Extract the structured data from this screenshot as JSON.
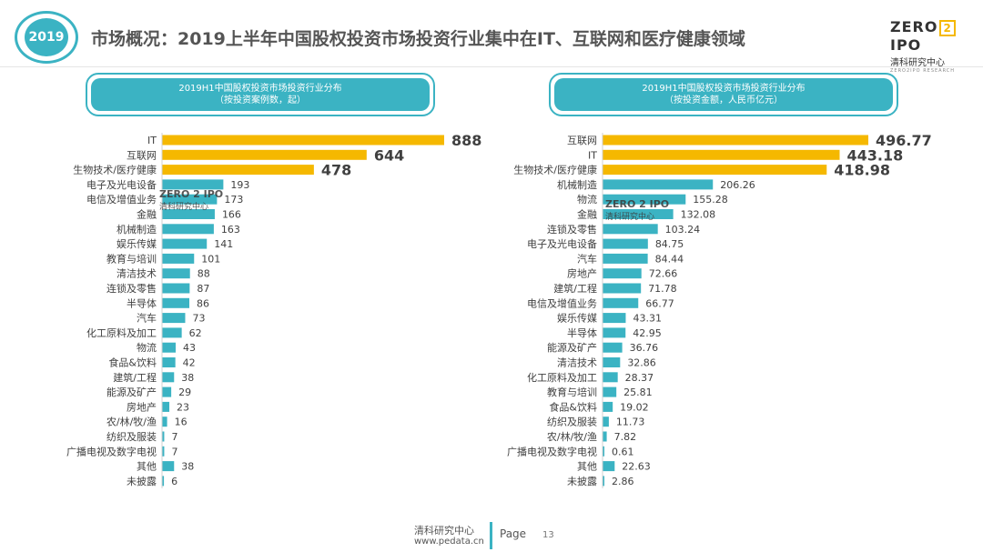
{
  "header": {
    "year_badge": "2019",
    "title": "市场概况：2019上半年中国股权投资市场投资行业集中在IT、互联网和医疗健康领域",
    "logo_left": "ZERO",
    "logo_mid": "2",
    "logo_right": "IPO",
    "logo_cn": "清科研究中心",
    "logo_en": "ZERO2IPO RESEARCH"
  },
  "watermarks": [
    {
      "main": "ZERO 2 IPO",
      "cn": "清科研究中心"
    },
    {
      "main": "ZERO 2 IPO",
      "cn": "清科研究中心"
    }
  ],
  "footer": {
    "org": "清科研究中心",
    "url": "www.pedata.cn",
    "page_label": "Page",
    "page_number": "13"
  },
  "colors": {
    "accent": "#3bb3c3",
    "highlight": "#f5b800"
  },
  "chart_data": [
    {
      "type": "bar",
      "orientation": "horizontal",
      "title": "2019H1中国股权投资市场投资行业分布",
      "subtitle": "（按投资案例数，起）",
      "highlight_top": 3,
      "categories": [
        "IT",
        "互联网",
        "生物技术/医疗健康",
        "电子及光电设备",
        "电信及增值业务",
        "金融",
        "机械制造",
        "娱乐传媒",
        "教育与培训",
        "清洁技术",
        "连锁及零售",
        "半导体",
        "汽车",
        "化工原料及加工",
        "物流",
        "食品&饮料",
        "建筑/工程",
        "能源及矿产",
        "房地产",
        "农/林/牧/渔",
        "纺织及服装",
        "广播电视及数字电视",
        "其他",
        "未披露"
      ],
      "values": [
        888,
        644,
        478,
        193,
        173,
        166,
        163,
        141,
        101,
        88,
        87,
        86,
        73,
        62,
        43,
        42,
        38,
        29,
        23,
        16,
        7,
        7,
        38,
        6
      ],
      "labels": [
        "888",
        "644",
        "478",
        "193",
        "173",
        "166",
        "163",
        "141",
        "101",
        "88",
        "87",
        "86",
        "73",
        "62",
        "43",
        "42",
        "38",
        "29",
        "23",
        "16",
        "7",
        "7",
        "38",
        "6"
      ],
      "xlim": [
        0,
        888
      ]
    },
    {
      "type": "bar",
      "orientation": "horizontal",
      "title": "2019H1中国股权投资市场投资行业分布",
      "subtitle": "（按投资金额，人民币亿元）",
      "highlight_top": 3,
      "categories": [
        "互联网",
        "IT",
        "生物技术/医疗健康",
        "机械制造",
        "物流",
        "金融",
        "连锁及零售",
        "电子及光电设备",
        "汽车",
        "房地产",
        "建筑/工程",
        "电信及增值业务",
        "娱乐传媒",
        "半导体",
        "能源及矿产",
        "清洁技术",
        "化工原料及加工",
        "教育与培训",
        "食品&饮料",
        "纺织及服装",
        "农/林/牧/渔",
        "广播电视及数字电视",
        "其他",
        "未披露"
      ],
      "values": [
        496.77,
        443.18,
        418.98,
        206.26,
        155.28,
        132.08,
        103.24,
        84.75,
        84.44,
        72.66,
        71.78,
        66.77,
        43.31,
        42.95,
        36.76,
        32.86,
        28.37,
        25.81,
        19.02,
        11.73,
        7.82,
        0.61,
        22.63,
        2.86
      ],
      "labels": [
        "496.77",
        "443.18",
        "418.98",
        "206.26",
        "155.28",
        "132.08",
        "103.24",
        "84.75",
        "84.44",
        "72.66",
        "71.78",
        "66.77",
        "43.31",
        "42.95",
        "36.76",
        "32.86",
        "28.37",
        "25.81",
        "19.02",
        "11.73",
        "7.82",
        "0.61",
        "22.63",
        "2.86"
      ],
      "xlim": [
        0,
        496.77
      ]
    }
  ]
}
